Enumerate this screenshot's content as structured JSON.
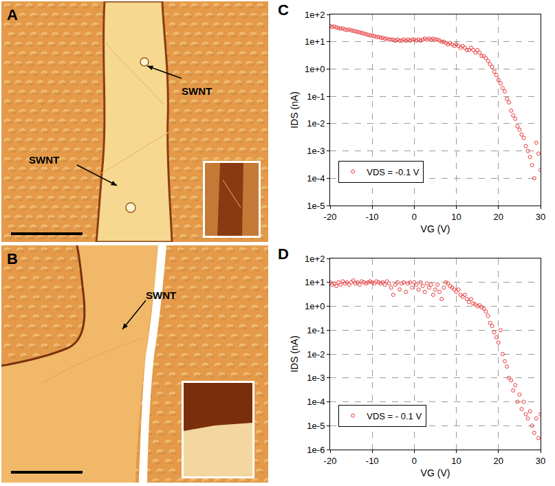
{
  "images": [
    {
      "panel_label": "A",
      "annotations": [
        "SWNT",
        "SWNT"
      ]
    },
    {
      "panel_label": "B",
      "annotations": [
        "SWNT"
      ]
    }
  ],
  "chart_data": [
    {
      "panel_label": "C",
      "type": "scatter",
      "x_label": "VG (V)",
      "y_label": "IDS (nA)",
      "log": "y",
      "grid": true,
      "legend": "lower left",
      "xlim": [
        -20,
        30
      ],
      "xticks": [
        -20,
        -10,
        0,
        10,
        20,
        30
      ],
      "ylim": [
        1e-05,
        100
      ],
      "yticks": [
        {
          "value": 100,
          "label": "1e+2"
        },
        {
          "value": 10,
          "label": "1e+1"
        },
        {
          "value": 1,
          "label": "1e+0"
        },
        {
          "value": 0.1,
          "label": "1e-1"
        },
        {
          "value": 0.01,
          "label": "1e-2"
        },
        {
          "value": 0.001,
          "label": "1e-3"
        },
        {
          "value": 0.0001,
          "label": "1e-4"
        },
        {
          "value": 1e-05,
          "label": "1e-5"
        }
      ],
      "x": [
        -20,
        -19.5,
        -19,
        -18.5,
        -18,
        -17.5,
        -17,
        -16.5,
        -16,
        -15.5,
        -15,
        -14.5,
        -14,
        -13.5,
        -13,
        -12.5,
        -12,
        -11.5,
        -11,
        -10.5,
        -10,
        -9.5,
        -9,
        -8.5,
        -8,
        -7.5,
        -7,
        -6.5,
        -6,
        -5.5,
        -5,
        -4.5,
        -4,
        -3.5,
        -3,
        -2.5,
        -2,
        -1.5,
        -1,
        -0.5,
        0,
        0.5,
        1,
        1.5,
        2,
        2.5,
        3,
        3.5,
        4,
        4.5,
        5,
        5.5,
        6,
        6.5,
        7,
        7.5,
        8,
        8.5,
        9,
        9.5,
        10,
        10.5,
        11,
        11.5,
        12,
        12.5,
        13,
        13.5,
        14,
        14.5,
        15,
        15.5,
        16,
        16.5,
        17,
        17.5,
        18,
        18.5,
        19,
        19.5,
        20,
        20.5,
        21,
        21.5,
        22,
        22.5,
        23,
        23.5,
        24,
        24.5,
        25,
        25.5,
        26,
        26.5,
        27,
        27.5,
        28,
        28.5,
        29,
        29.5,
        30
      ],
      "series": [
        {
          "name": "VDS = -0.1 V",
          "color": "#e8393a",
          "marker": "open circle",
          "values": [
            38,
            35,
            36,
            33,
            32,
            30,
            31,
            28,
            27,
            28,
            26,
            25,
            24,
            23,
            22,
            21,
            20,
            19,
            18,
            17,
            17,
            16,
            15,
            15,
            14,
            14,
            13,
            13,
            12,
            12,
            12,
            11,
            12,
            11,
            11,
            12,
            11,
            12,
            11,
            12,
            12,
            11,
            12,
            11,
            12,
            13,
            12,
            13,
            12,
            13,
            12,
            12,
            11,
            10,
            10,
            9,
            8,
            9,
            8,
            7,
            8,
            7,
            6,
            7,
            6,
            5,
            5,
            6,
            5,
            4,
            5,
            4,
            3,
            3,
            2.5,
            2,
            1.5,
            1.2,
            0.8,
            0.6,
            0.4,
            0.3,
            0.2,
            0.15,
            0.08,
            0.06,
            0.03,
            0.02,
            0.015,
            0.008,
            0.006,
            0.004,
            0.003,
            0.0015,
            0.001,
            0.0006,
            0.0003,
            0.0001,
            0.002,
            0.0008,
            0.0002
          ]
        }
      ]
    },
    {
      "panel_label": "D",
      "type": "scatter",
      "x_label": "VG (V)",
      "y_label": "IDS (nA)",
      "log": "y",
      "grid": true,
      "legend": "lower left",
      "xlim": [
        -20,
        30
      ],
      "xticks": [
        -20,
        -10,
        0,
        10,
        20,
        30
      ],
      "ylim": [
        1e-06,
        100
      ],
      "yticks": [
        {
          "value": 100,
          "label": "1e+2"
        },
        {
          "value": 10,
          "label": "1e+1"
        },
        {
          "value": 1,
          "label": "1e+0"
        },
        {
          "value": 0.1,
          "label": "1e-1"
        },
        {
          "value": 0.01,
          "label": "1e-2"
        },
        {
          "value": 0.001,
          "label": "1e-3"
        },
        {
          "value": 0.0001,
          "label": "1e-4"
        },
        {
          "value": 1e-05,
          "label": "1e-5"
        },
        {
          "value": 1e-06,
          "label": "1e-6"
        }
      ],
      "x": [
        -20,
        -19.5,
        -19,
        -18.5,
        -18,
        -17.5,
        -17,
        -16.5,
        -16,
        -15.5,
        -15,
        -14.5,
        -14,
        -13.5,
        -13,
        -12.5,
        -12,
        -11.5,
        -11,
        -10.5,
        -10,
        -9.5,
        -9,
        -8.5,
        -8,
        -7.5,
        -7,
        -6.5,
        -6,
        -5.5,
        -5,
        -4.5,
        -4,
        -3.5,
        -3,
        -2.5,
        -2,
        -1.5,
        -1,
        -0.5,
        0,
        0.5,
        1,
        1.5,
        2,
        2.5,
        3,
        3.5,
        4,
        4.5,
        5,
        5.5,
        6,
        6.5,
        7,
        7.5,
        8,
        8.5,
        9,
        9.5,
        10,
        10.5,
        11,
        11.5,
        12,
        12.5,
        13,
        13.5,
        14,
        14.5,
        15,
        15.5,
        16,
        16.5,
        17,
        17.5,
        18,
        18.5,
        19,
        19.5,
        20,
        20.5,
        21,
        21.5,
        22,
        22.5,
        23,
        23.5,
        24,
        24.5,
        25,
        25.5,
        26,
        26.5,
        27,
        27.5,
        28,
        28.5,
        29,
        29.5,
        30
      ],
      "series": [
        {
          "name": "VDS = - 0.1 V",
          "color": "#e8393a",
          "marker": "open circle",
          "values": [
            10,
            8,
            9,
            7,
            10,
            8,
            11,
            9,
            10,
            8,
            10,
            12,
            9,
            10,
            8,
            11,
            10,
            9,
            10,
            11,
            10,
            9,
            11,
            10,
            9,
            10,
            8,
            11,
            9,
            6,
            3,
            8,
            10,
            5,
            9,
            10,
            4,
            9,
            10,
            6,
            10,
            8,
            5,
            10,
            7,
            4,
            9,
            6,
            8,
            3,
            5,
            8,
            4,
            2,
            6,
            10,
            9,
            7,
            6,
            5,
            4,
            5,
            3,
            2.5,
            3,
            2,
            1.5,
            2,
            1.3,
            1.2,
            1,
            1.1,
            0.9,
            0.8,
            0.6,
            0.4,
            0.2,
            0.15,
            0.08,
            0.05,
            0.03,
            0.1,
            0.01,
            0.005,
            0.003,
            0.001,
            0.0008,
            0.0003,
            0.0005,
            0.0001,
            0.0002,
            5e-05,
            0.0001,
            3e-05,
            2e-05,
            4e-05,
            1e-05,
            5e-06,
            2e-05,
            3e-06,
            3e-05
          ]
        }
      ]
    }
  ]
}
